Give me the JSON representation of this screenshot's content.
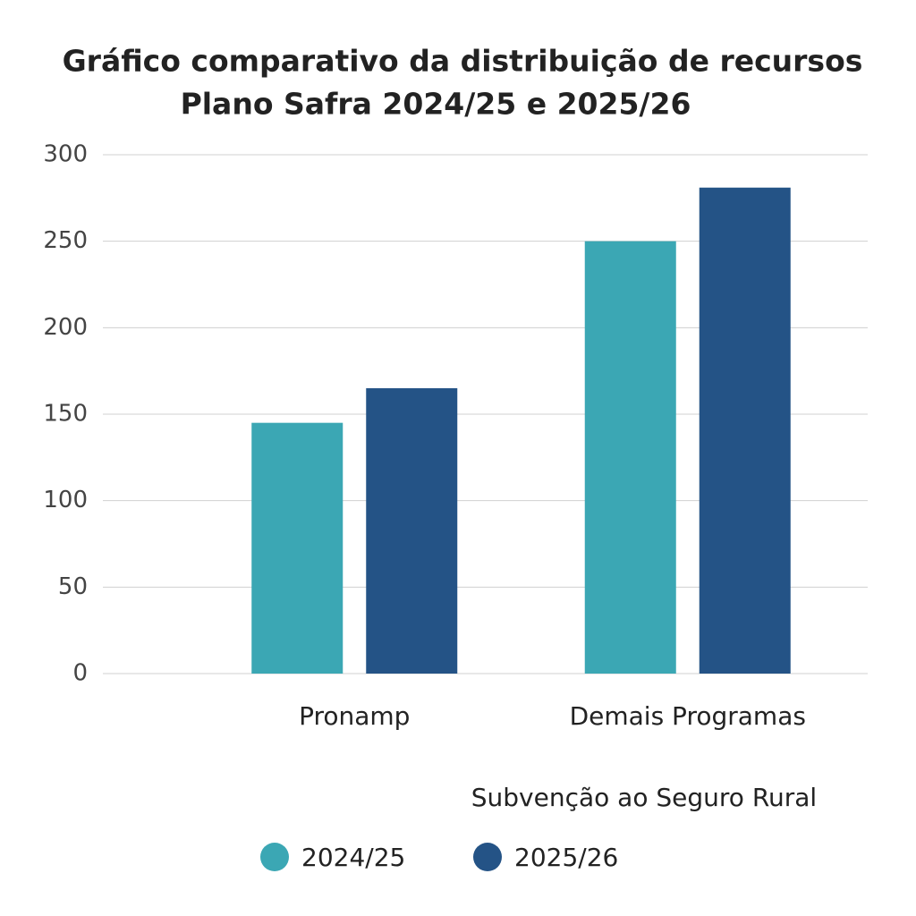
{
  "chart_data": {
    "type": "bar",
    "title": [
      "Gráfico comparativo da distribuição de recursos",
      "Plano Safra 2024/25 e 2025/26"
    ],
    "categories": [
      "Pronamp",
      "Demais Programas"
    ],
    "series": [
      {
        "name": "2024/25",
        "color": "#3ba7b4",
        "values": [
          145,
          250
        ]
      },
      {
        "name": "2025/26",
        "color": "#245386",
        "values": [
          165,
          281
        ]
      }
    ],
    "annotation": "Subvenção ao Seguro Rural",
    "ylim": [
      0,
      300
    ],
    "yticks": [
      0,
      50,
      100,
      150,
      200,
      250,
      300
    ],
    "grid": true
  }
}
